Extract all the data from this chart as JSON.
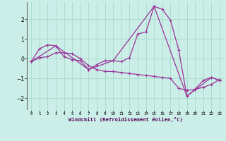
{
  "xlabel": "Windchill (Refroidissement éolien,°C)",
  "line_color": "#993399",
  "bg_color": "#cceee8",
  "grid_color": "#aaddcc",
  "xlim": [
    -0.5,
    23.5
  ],
  "ylim": [
    -2.6,
    2.9
  ],
  "yticks": [
    -2,
    -1,
    0,
    1,
    2
  ],
  "xticks": [
    0,
    1,
    2,
    3,
    4,
    5,
    6,
    7,
    8,
    9,
    10,
    11,
    12,
    13,
    14,
    15,
    16,
    17,
    18,
    19,
    20,
    21,
    22,
    23
  ],
  "series1_x": [
    0,
    1,
    2,
    3,
    4,
    5,
    6,
    7,
    8,
    9,
    10,
    11,
    12,
    13,
    14,
    15,
    16,
    17,
    18,
    19,
    20,
    21,
    22,
    23
  ],
  "series1_y": [
    -0.15,
    0.5,
    0.7,
    0.65,
    0.1,
    -0.05,
    -0.1,
    -0.55,
    -0.3,
    -0.1,
    -0.1,
    -0.15,
    0.05,
    1.25,
    1.35,
    2.65,
    2.5,
    1.95,
    0.45,
    -1.9,
    -1.55,
    -1.1,
    -0.95,
    -1.1
  ],
  "series2_x": [
    0,
    1,
    2,
    3,
    4,
    5,
    6,
    7,
    8,
    9,
    10,
    11,
    12,
    13,
    14,
    15,
    16,
    17,
    18,
    19,
    20,
    21,
    22,
    23
  ],
  "series2_y": [
    -0.15,
    0.05,
    0.1,
    0.3,
    0.3,
    0.25,
    0.0,
    -0.35,
    -0.55,
    -0.65,
    -0.65,
    -0.7,
    -0.75,
    -0.8,
    -0.85,
    -0.9,
    -0.95,
    -1.0,
    -1.5,
    -1.6,
    -1.55,
    -1.45,
    -1.3,
    -1.05
  ],
  "series3_x": [
    0,
    3,
    7,
    10,
    15,
    19,
    22,
    23
  ],
  "series3_y": [
    -0.15,
    0.65,
    -0.55,
    -0.1,
    2.65,
    -1.9,
    -0.95,
    -1.1
  ],
  "marker_size": 2.5,
  "line_width": 0.9
}
